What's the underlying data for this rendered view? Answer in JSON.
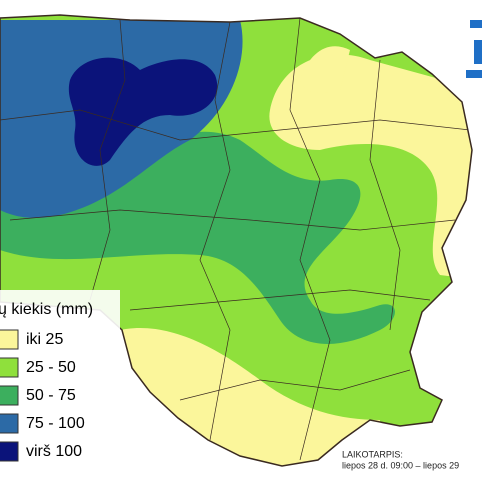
{
  "legend": {
    "title": "ų kiekis (mm)",
    "items": [
      {
        "label": "iki 25",
        "color": "#fbf69b"
      },
      {
        "label": "25 - 50",
        "color": "#8fe03c"
      },
      {
        "label": "50 - 75",
        "color": "#3caf5e"
      },
      {
        "label": "75 - 100",
        "color": "#2c6aa6"
      },
      {
        "label": "virš 100",
        "color": "#0b137a"
      }
    ]
  },
  "period": {
    "label": "LAIKOTARPIS:",
    "value": "liepos 28 d. 09:00 – liepos 29"
  }
}
